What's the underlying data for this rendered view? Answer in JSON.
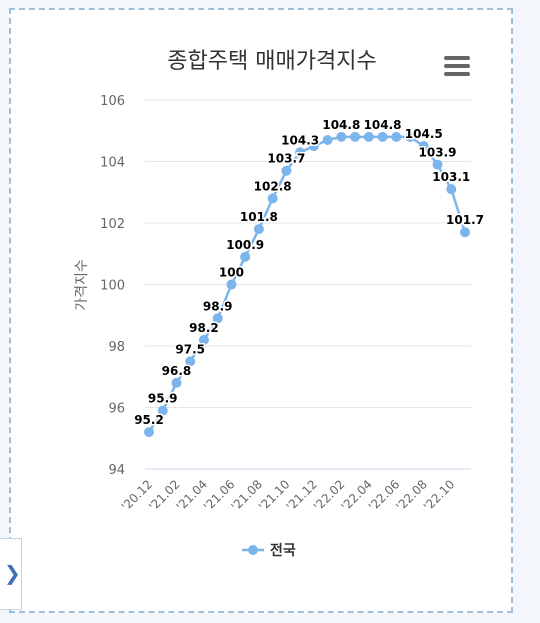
{
  "page": {
    "menu_icon": "hamburger-menu-icon",
    "side_tab_icon": "chevron-right-icon"
  },
  "chart_data": {
    "type": "line",
    "title": "종합주택 매매가격지수",
    "ylabel": "가격지수",
    "xlabel": "",
    "ylim": [
      94,
      106
    ],
    "yticks": [
      94,
      96,
      98,
      100,
      102,
      104,
      106
    ],
    "grid": true,
    "legend_position": "bottom",
    "x": [
      "'20.12",
      "'21.01",
      "'21.02",
      "'21.03",
      "'21.04",
      "'21.05",
      "'21.06",
      "'21.07",
      "'21.08",
      "'21.09",
      "'21.10",
      "'21.11",
      "'21.12",
      "'22.01",
      "'22.02",
      "'22.03",
      "'22.04",
      "'22.05",
      "'22.06",
      "'22.07",
      "'22.08",
      "'22.09",
      "'22.10",
      "'22.11"
    ],
    "x_tick_labels": [
      "'20.12",
      "'21.02",
      "'21.04",
      "'21.06",
      "'21.08",
      "'21.10",
      "'21.12",
      "'22.02",
      "'22.04",
      "'22.06",
      "'22.08",
      "'22.10"
    ],
    "series": [
      {
        "name": "전국",
        "color": "#7cb5ec",
        "values": [
          95.2,
          95.9,
          96.8,
          97.5,
          98.2,
          98.9,
          100,
          100.9,
          101.8,
          102.8,
          103.7,
          104.3,
          104.5,
          104.7,
          104.8,
          104.8,
          104.8,
          104.8,
          104.8,
          104.8,
          104.5,
          103.9,
          103.1,
          101.7
        ],
        "point_labels": [
          "95.2",
          "95.9",
          "96.8",
          "97.5",
          "98.2",
          "98.9",
          "100",
          "100.9",
          "101.8",
          "102.8",
          "103.7",
          "104.3",
          "",
          "",
          "104.8",
          "",
          "",
          "104.8",
          "",
          "",
          "104.5",
          "103.9",
          "103.1",
          "101.7"
        ]
      }
    ]
  }
}
